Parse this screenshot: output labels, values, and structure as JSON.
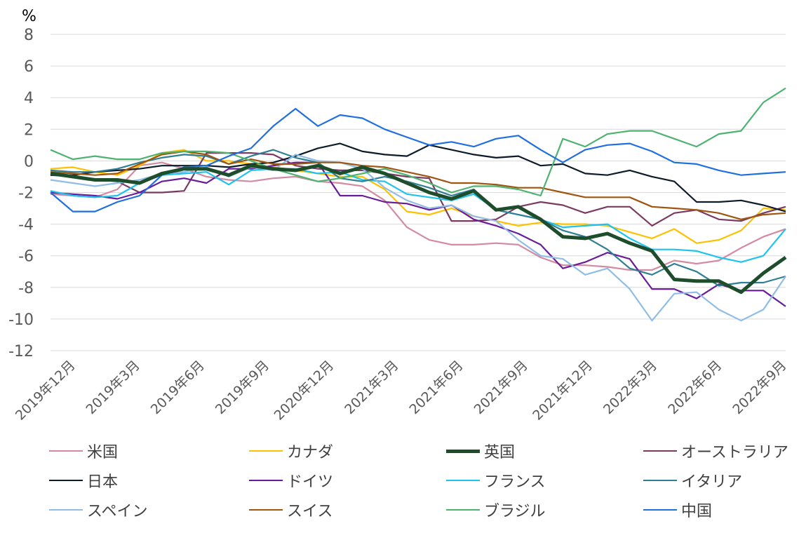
{
  "chart_data": {
    "type": "line",
    "unit_label": "%",
    "ylim": [
      -12,
      8
    ],
    "yticks": [
      8,
      6,
      4,
      2,
      0,
      -2,
      -4,
      -6,
      -8,
      -10,
      -12
    ],
    "grid": true,
    "legend_position": "bottom",
    "x_tick_labels": [
      "2019年12月",
      "2019年3月",
      "2019年6月",
      "2019年9月",
      "2020年12月",
      "2021年3月",
      "2021年6月",
      "2021年9月",
      "2021年12月",
      "2022年3月",
      "2022年6月",
      "2022年9月"
    ],
    "n_points": 34,
    "series": [
      {
        "name": "米国",
        "color": "#d48aa0",
        "width": 2.2,
        "values": [
          -2.1,
          -2.2,
          -2.3,
          -1.8,
          -0.3,
          -0.1,
          -0.5,
          -1.0,
          -1.2,
          -1.3,
          -1.1,
          -1.0,
          -1.3,
          -1.4,
          -1.6,
          -2.5,
          -4.2,
          -5.0,
          -5.3,
          -5.3,
          -5.2,
          -5.3,
          -6.1,
          -6.6,
          -6.6,
          -6.7,
          -6.9,
          -6.9,
          -6.3,
          -6.5,
          -6.3,
          -5.5,
          -4.8,
          -4.3
        ]
      },
      {
        "name": "カナダ",
        "color": "#ffc000",
        "width": 2.2,
        "values": [
          -0.5,
          -0.4,
          -0.7,
          -0.9,
          -0.3,
          0.5,
          0.7,
          0.0,
          0.0,
          -0.2,
          -0.4,
          -0.6,
          -0.8,
          -1.0,
          -1.0,
          -1.8,
          -3.2,
          -3.4,
          -3.0,
          -3.5,
          -3.8,
          -4.1,
          -3.9,
          -4.0,
          -4.0,
          -4.1,
          -4.5,
          -4.9,
          -4.3,
          -5.2,
          -5.0,
          -4.4,
          -3.0,
          -3.1
        ]
      },
      {
        "name": "英国",
        "color": "#1e4d2b",
        "width": 5,
        "values": [
          -0.8,
          -1.0,
          -1.2,
          -1.2,
          -1.4,
          -0.8,
          -0.5,
          -0.5,
          -0.9,
          -0.3,
          -0.5,
          -0.6,
          -0.3,
          -0.8,
          -0.4,
          -0.8,
          -1.4,
          -2.0,
          -2.4,
          -1.9,
          -3.1,
          -2.9,
          -3.7,
          -4.8,
          -4.9,
          -4.6,
          -5.2,
          -5.7,
          -7.5,
          -7.6,
          -7.6,
          -8.3,
          -7.1,
          -6.1
        ]
      },
      {
        "name": "オーストラリア",
        "color": "#7a3b62",
        "width": 2.2,
        "values": [
          -0.9,
          -1.0,
          -1.2,
          -1.3,
          -2.0,
          -2.0,
          -1.9,
          0.5,
          0.5,
          0.5,
          0.4,
          -0.3,
          -0.5,
          -0.6,
          -0.6,
          -0.8,
          -1.0,
          -1.1,
          -3.8,
          -3.8,
          -3.7,
          -2.9,
          -2.6,
          -2.8,
          -3.3,
          -2.9,
          -2.9,
          -4.1,
          -3.3,
          -3.1,
          -3.7,
          -3.8,
          -3.3,
          -2.9
        ]
      },
      {
        "name": "日本",
        "color": "#0d1b2a",
        "width": 2.2,
        "values": [
          -0.9,
          -0.9,
          -0.7,
          -0.6,
          -0.5,
          -0.3,
          -0.3,
          -0.3,
          -0.4,
          -0.2,
          -0.1,
          0.3,
          0.8,
          1.1,
          0.6,
          0.4,
          0.3,
          1.0,
          0.7,
          0.4,
          0.2,
          0.3,
          -0.3,
          -0.2,
          -0.8,
          -0.9,
          -0.6,
          -1.0,
          -1.3,
          -2.6,
          -2.6,
          -2.5,
          -2.8,
          -3.2
        ]
      },
      {
        "name": "ドイツ",
        "color": "#6a1b9a",
        "width": 2.2,
        "values": [
          -2.0,
          -2.1,
          -2.2,
          -2.4,
          -2.0,
          -1.3,
          -1.1,
          -1.4,
          -0.5,
          -0.5,
          -0.3,
          -0.1,
          -0.1,
          -2.2,
          -2.2,
          -2.6,
          -2.7,
          -3.1,
          -2.8,
          -3.7,
          -4.1,
          -4.6,
          -5.3,
          -6.8,
          -6.4,
          -5.8,
          -6.2,
          -8.1,
          -8.1,
          -8.7,
          -7.8,
          -8.2,
          -8.2,
          -9.2
        ]
      },
      {
        "name": "フランス",
        "color": "#1fc3ee",
        "width": 2.2,
        "values": [
          -1.9,
          -2.2,
          -2.3,
          -2.2,
          -1.4,
          -0.9,
          -0.8,
          -0.7,
          -1.5,
          -0.6,
          -0.5,
          -0.5,
          -0.8,
          -0.7,
          -1.2,
          -1.3,
          -2.1,
          -2.3,
          -2.5,
          -2.1,
          -3.1,
          -3.4,
          -3.7,
          -4.2,
          -4.1,
          -4.0,
          -4.9,
          -5.6,
          -5.6,
          -5.7,
          -6.1,
          -6.4,
          -6.0,
          -4.3
        ]
      },
      {
        "name": "イタリア",
        "color": "#2e7f93",
        "width": 2.2,
        "values": [
          -0.6,
          -0.7,
          -0.7,
          -0.5,
          -0.1,
          0.2,
          0.4,
          0.3,
          -0.2,
          0.3,
          0.7,
          0.2,
          -0.1,
          -1.1,
          -1.3,
          -1.0,
          -1.3,
          -1.7,
          -2.2,
          -1.8,
          -3.1,
          -3.4,
          -3.7,
          -4.4,
          -4.8,
          -5.6,
          -6.8,
          -7.2,
          -6.5,
          -7.0,
          -7.9,
          -7.7,
          -7.7,
          -7.3
        ]
      },
      {
        "name": "スペイン",
        "color": "#90bde6",
        "width": 2.2,
        "values": [
          -1.2,
          -1.4,
          -1.6,
          -1.4,
          -1.2,
          -0.8,
          -0.7,
          -0.4,
          -1.0,
          -0.4,
          -0.6,
          0.4,
          0.0,
          -0.1,
          -0.5,
          -1.7,
          -2.5,
          -3.0,
          -2.8,
          -3.5,
          -3.8,
          -5.0,
          -6.0,
          -6.2,
          -7.2,
          -6.8,
          -8.1,
          -10.1,
          -8.4,
          -8.3,
          -9.4,
          -10.1,
          -9.4,
          -7.3
        ]
      },
      {
        "name": "スイス",
        "color": "#a0550f",
        "width": 2.2,
        "values": [
          -0.7,
          -0.8,
          -0.9,
          -0.8,
          -0.2,
          0.4,
          0.6,
          0.4,
          -0.2,
          0.1,
          -0.2,
          -0.2,
          -0.1,
          -0.1,
          -0.3,
          -0.4,
          -0.7,
          -1.0,
          -1.4,
          -1.4,
          -1.5,
          -1.7,
          -1.7,
          -2.0,
          -2.3,
          -2.3,
          -2.3,
          -2.9,
          -3.0,
          -3.1,
          -3.3,
          -3.7,
          -3.4,
          -3.3
        ]
      },
      {
        "name": "ブラジル",
        "color": "#4db370",
        "width": 2.2,
        "values": [
          0.7,
          0.1,
          0.3,
          0.1,
          0.1,
          0.5,
          0.6,
          0.6,
          0.5,
          0.0,
          -0.5,
          -0.9,
          -1.3,
          -1.1,
          -0.8,
          -0.5,
          -0.9,
          -1.4,
          -2.0,
          -1.6,
          -1.6,
          -1.8,
          -2.2,
          1.4,
          0.9,
          1.7,
          1.9,
          1.9,
          1.4,
          0.9,
          1.7,
          1.9,
          3.7,
          4.6
        ]
      },
      {
        "name": "中国",
        "color": "#1f6fe0",
        "width": 2.2,
        "values": [
          -2.0,
          -3.2,
          -3.2,
          -2.6,
          -2.2,
          -0.9,
          -0.4,
          -0.3,
          0.3,
          0.8,
          2.2,
          3.3,
          2.2,
          2.9,
          2.7,
          2.0,
          1.5,
          1.0,
          1.2,
          0.9,
          1.4,
          1.6,
          0.7,
          -0.1,
          0.7,
          1.0,
          1.1,
          0.6,
          -0.1,
          -0.2,
          -0.6,
          -0.9,
          -0.8,
          -0.7
        ]
      }
    ]
  }
}
